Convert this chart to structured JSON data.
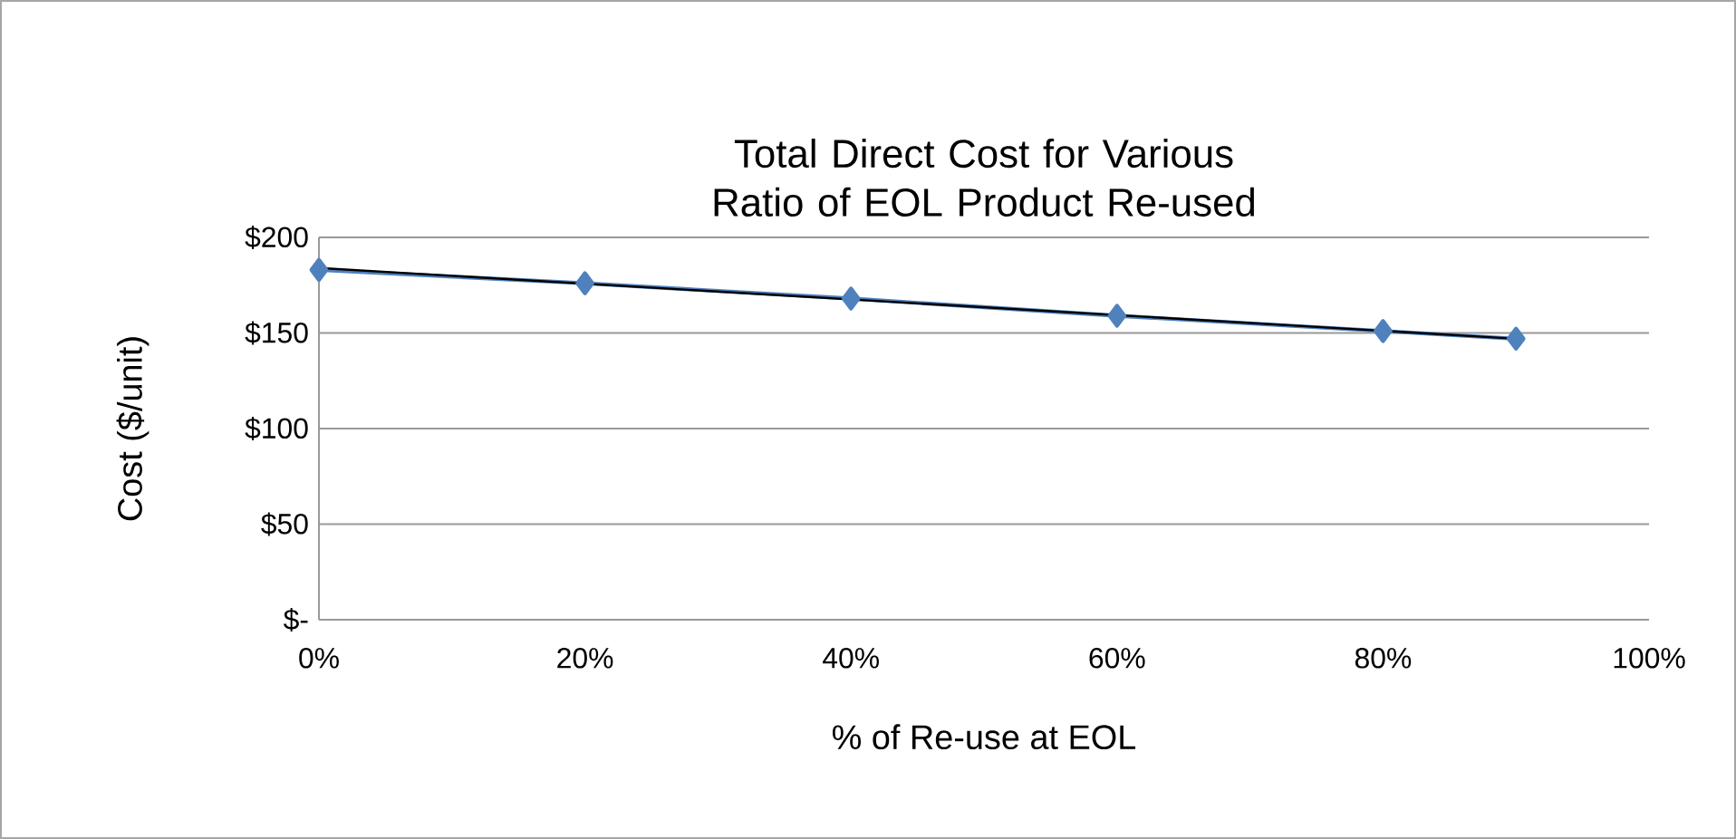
{
  "chart_data": {
    "type": "line",
    "title": "Total Direct Cost for Various Ratio of EOL Product Re-used",
    "xlabel": "% of Re-use at EOL",
    "ylabel": "Cost ($/unit)",
    "x": [
      0,
      20,
      40,
      60,
      80,
      90
    ],
    "series": [
      {
        "color": "#4f81bd",
        "marker": "diamond",
        "values": [
          183,
          176,
          168,
          159,
          151,
          147
        ]
      },
      {
        "type": "line",
        "color": "#000000",
        "marker": "none",
        "x": [
          0,
          90
        ],
        "values": [
          184,
          147
        ]
      }
    ],
    "xlim": [
      0,
      100
    ],
    "ylim": [
      0,
      200
    ],
    "xticks": [
      {
        "value": 0,
        "label": "0%"
      },
      {
        "value": 20,
        "label": "20%"
      },
      {
        "value": 40,
        "label": "40%"
      },
      {
        "value": 60,
        "label": "60%"
      },
      {
        "value": 80,
        "label": "80%"
      },
      {
        "value": 100,
        "label": "100%"
      }
    ],
    "yticks": [
      {
        "value": 0,
        "label": "$-"
      },
      {
        "value": 50,
        "label": "$50"
      },
      {
        "value": 100,
        "label": "$100"
      },
      {
        "value": 150,
        "label": "$150"
      },
      {
        "value": 200,
        "label": "$200"
      }
    ],
    "grid": "y"
  }
}
